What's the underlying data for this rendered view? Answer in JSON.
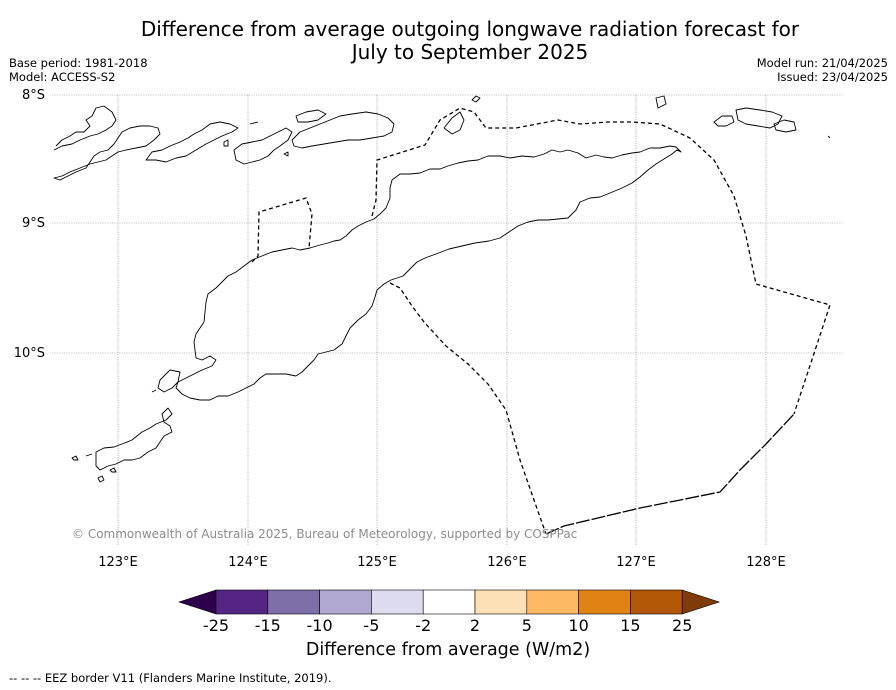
{
  "title": {
    "line1": "Difference from average outgoing longwave radiation forecast for",
    "line2": "July to September 2025"
  },
  "meta": {
    "base_period": "Base period: 1981-2018",
    "model": "Model: ACCESS-S2",
    "model_run": "Model run: 21/04/2025",
    "issued": "Issued: 23/04/2025"
  },
  "map": {
    "lat_labels": [
      "8°S",
      "9°S",
      "10°S"
    ],
    "lon_labels": [
      "123°E",
      "124°E",
      "125°E",
      "126°E",
      "127°E",
      "128°E"
    ],
    "copyright": "© Commonwealth of Australia 2025, Bureau of Meteorology, supported by COSPPac"
  },
  "colorbar": {
    "ticks": [
      "-25",
      "-15",
      "-10",
      "-5",
      "-2",
      "2",
      "5",
      "10",
      "15",
      "25"
    ],
    "colors": [
      "#552586",
      "#7e6fa8",
      "#b0a8d0",
      "#dcdcee",
      "#ffffff",
      "#fde0b5",
      "#fdb863",
      "#e08214",
      "#b35806"
    ],
    "under_color": "#2d004b",
    "over_color": "#7f3b08",
    "title": "Difference from average (W/m2)"
  },
  "footer": {
    "legend_text": "--  --  -- EEZ border V11 (Flanders Marine Institute, 2019)."
  }
}
